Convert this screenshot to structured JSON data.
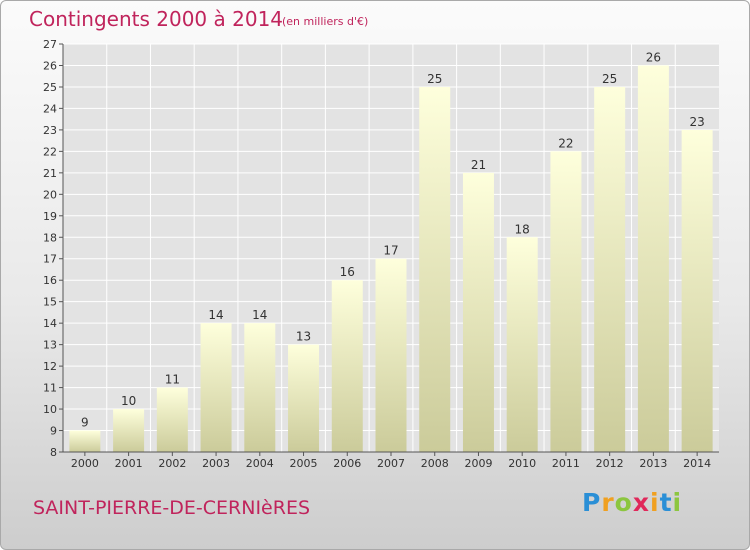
{
  "title": "Contingents 2000 à 2014",
  "subtitle": "(en milliers d'€)",
  "place_name": "SAINT-PIERRE-DE-CERNIèRES",
  "brand": {
    "letters": [
      "P",
      "r",
      "o",
      "x",
      "i",
      "t",
      "i"
    ],
    "colors": [
      "#2a8fd6",
      "#f0a020",
      "#8cc63f",
      "#e0285a",
      "#f0a020",
      "#2a8fd6",
      "#8cc63f"
    ]
  },
  "colors": {
    "title": "#c0245c",
    "bar_top": "#feffdc",
    "bar_bottom": "#cbcb9a",
    "grid": "#ffffff",
    "plot_background": "#e3e3e3"
  },
  "chart_data": {
    "type": "bar",
    "title": "Contingents 2000 à 2014",
    "subtitle": "(en milliers d'€)",
    "categories": [
      "2000",
      "2001",
      "2002",
      "2003",
      "2004",
      "2005",
      "2006",
      "2007",
      "2008",
      "2009",
      "2010",
      "2011",
      "2012",
      "2013",
      "2014"
    ],
    "values": [
      9,
      10,
      11,
      14,
      14,
      13,
      16,
      17,
      25,
      21,
      18,
      22,
      25,
      26,
      23
    ],
    "ylim": [
      8,
      27
    ],
    "yticks": [
      8,
      9,
      10,
      11,
      12,
      13,
      14,
      15,
      16,
      17,
      18,
      19,
      20,
      21,
      22,
      23,
      24,
      25,
      26,
      27
    ],
    "grid": true,
    "data_labels": true
  }
}
